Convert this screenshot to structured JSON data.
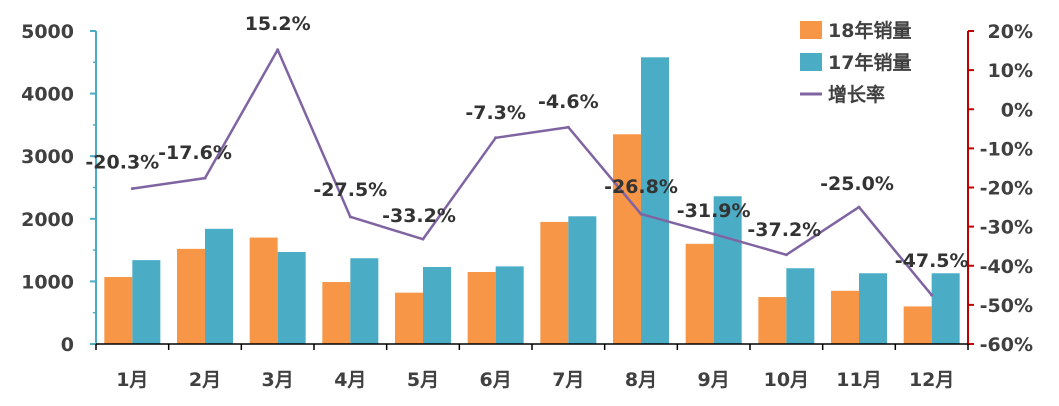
{
  "chart_data": {
    "type": "bar",
    "categories": [
      "1月",
      "2月",
      "3月",
      "4月",
      "5月",
      "6月",
      "7月",
      "8月",
      "9月",
      "10月",
      "11月",
      "12月"
    ],
    "series": [
      {
        "name": "18年销量",
        "type": "bar",
        "axis": "left",
        "color": "#F79646",
        "values": [
          1070,
          1520,
          1700,
          990,
          820,
          1150,
          1950,
          3350,
          1600,
          750,
          850,
          600
        ]
      },
      {
        "name": "17年销量",
        "type": "bar",
        "axis": "left",
        "color": "#4BACC6",
        "values": [
          1340,
          1840,
          1470,
          1370,
          1230,
          1240,
          2040,
          4580,
          2360,
          1210,
          1130,
          1130
        ]
      },
      {
        "name": "增长率",
        "type": "line",
        "axis": "right",
        "color": "#8064A2",
        "values": [
          -20.3,
          -17.6,
          15.2,
          -27.5,
          -33.2,
          -7.3,
          -4.6,
          -26.8,
          -31.9,
          -37.2,
          -25.0,
          -47.5
        ],
        "labels": [
          "-20.3%",
          "-17.6%",
          "15.2%",
          "-27.5%",
          "-33.2%",
          "-7.3%",
          "-4.6%",
          "-26.8%",
          "-31.9%",
          "-37.2%",
          "-25.0%",
          "-47.5%"
        ]
      }
    ],
    "y_left": {
      "ylim": [
        0,
        5000
      ],
      "ticks": [
        "0",
        "1000",
        "2000",
        "3000",
        "4000",
        "5000"
      ]
    },
    "y_right": {
      "ylim": [
        -60,
        20
      ],
      "ticks": [
        "20%",
        "10%",
        "0%",
        "-10%",
        "-20%",
        "-30%",
        "-40%",
        "-50%",
        "-60%"
      ],
      "axis_color": "#C00000"
    },
    "left_axis_color": "#4BACC6",
    "legend": {
      "position": "top-right"
    },
    "grid": false
  }
}
